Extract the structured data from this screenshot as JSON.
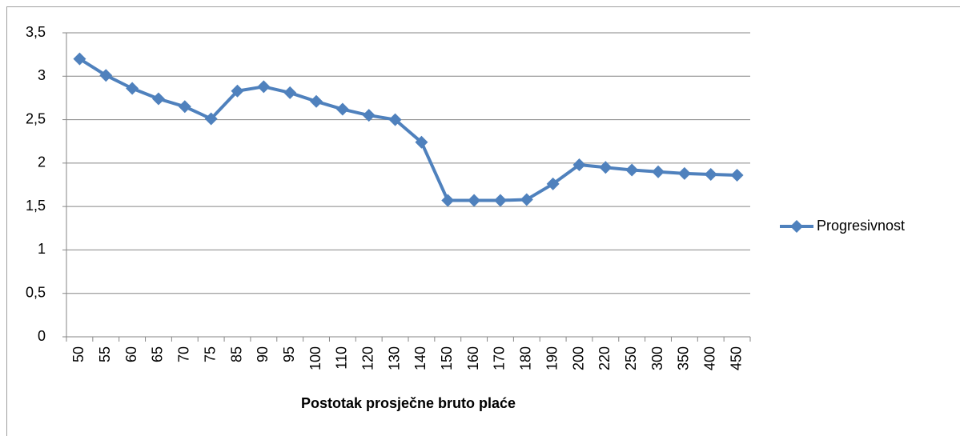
{
  "chart_data": {
    "type": "line",
    "x_label": "Postotak prosječne bruto plaće",
    "categories": [
      "50",
      "55",
      "60",
      "65",
      "70",
      "75",
      "85",
      "90",
      "95",
      "100",
      "110",
      "120",
      "130",
      "140",
      "150",
      "160",
      "170",
      "180",
      "190",
      "200",
      "220",
      "250",
      "300",
      "350",
      "400",
      "450"
    ],
    "series": [
      {
        "name": "Progresivnost",
        "color": "#4f81bd",
        "values": [
          3.2,
          3.01,
          2.86,
          2.74,
          2.65,
          2.51,
          2.83,
          2.88,
          2.81,
          2.71,
          2.62,
          2.55,
          2.5,
          2.24,
          1.57,
          1.57,
          1.57,
          1.58,
          1.76,
          1.98,
          1.95,
          1.92,
          1.9,
          1.88,
          1.87,
          1.86
        ]
      }
    ],
    "ylim": [
      0,
      3.5
    ],
    "yticks": [
      0,
      {
        "value": 0.5,
        "label": "0,5"
      },
      1,
      {
        "value": 1.5,
        "label": "1,5"
      },
      2,
      {
        "value": 2.5,
        "label": "2,5"
      },
      3,
      {
        "value": 3.5,
        "label": "3,5"
      }
    ],
    "grid": true,
    "legend": "right"
  }
}
